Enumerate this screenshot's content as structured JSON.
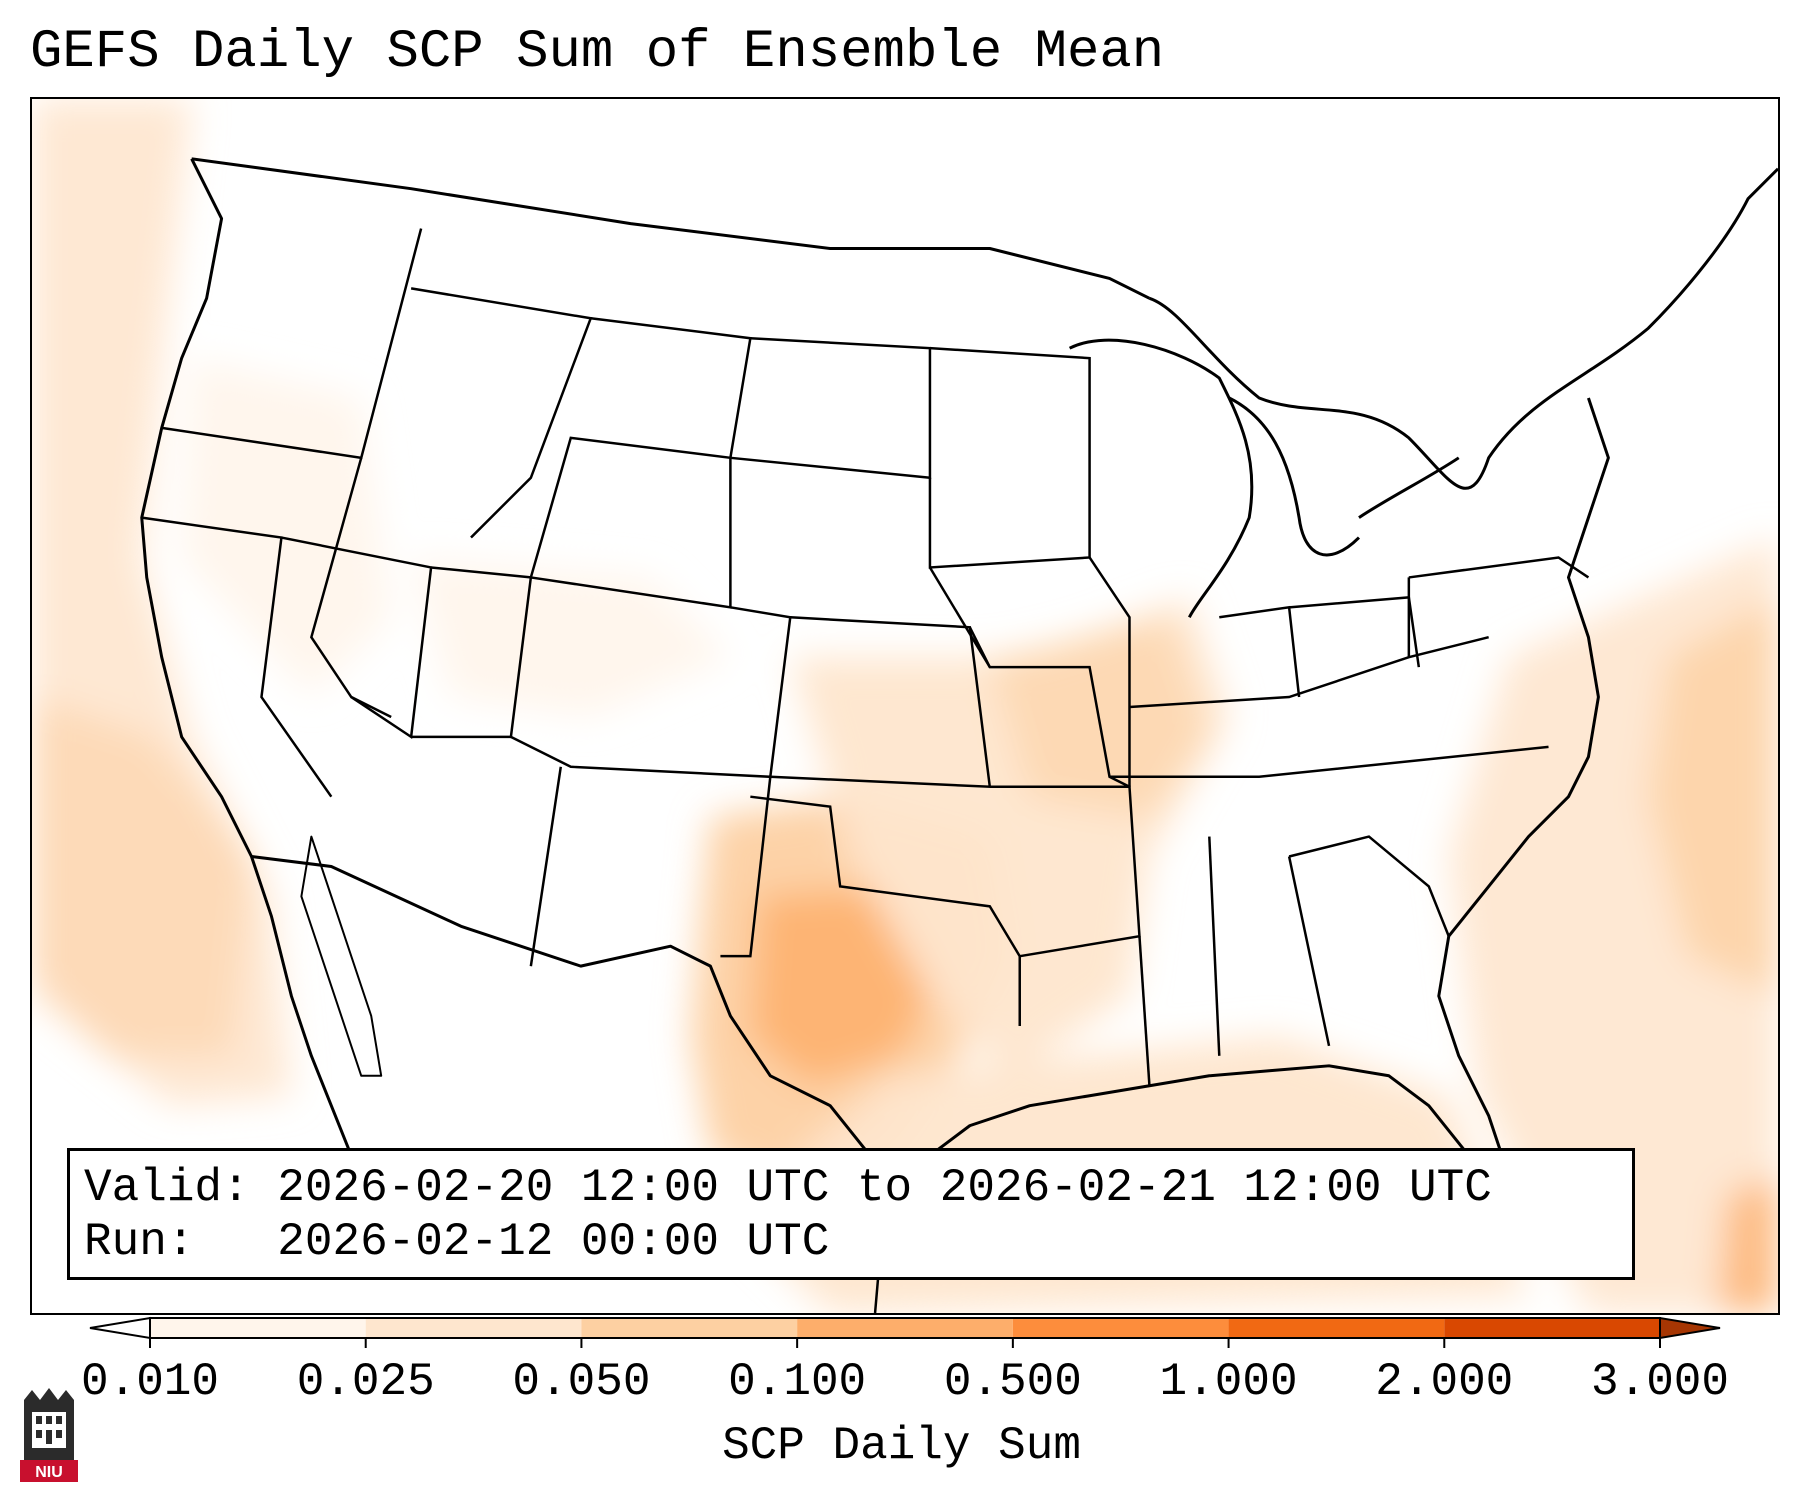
{
  "title": "GEFS Daily SCP Sum of Ensemble Mean",
  "info": {
    "valid_label": "Valid:",
    "valid_value": "2026-02-20 12:00 UTC to 2026-02-21 12:00 UTC",
    "run_label": "Run:",
    "run_value": "2026-02-12 00:00 UTC"
  },
  "colorbar": {
    "label": "SCP Daily Sum",
    "ticks": [
      "0.010",
      "0.025",
      "0.050",
      "0.100",
      "0.500",
      "1.000",
      "2.000",
      "3.000"
    ],
    "colors": [
      "#fff5eb",
      "#fee6ce",
      "#fdd0a2",
      "#fdae6b",
      "#fd8d3c",
      "#f16913",
      "#d94801",
      "#a63603"
    ],
    "extend": "both"
  },
  "logo": {
    "text": "NIU"
  }
}
